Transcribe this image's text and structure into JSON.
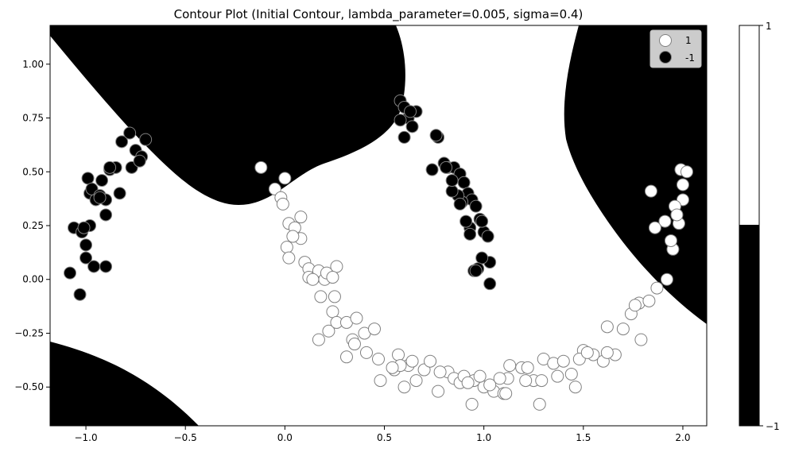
{
  "chart_data": {
    "type": "scatter",
    "title": "Contour Plot (Initial Contour, lambda_parameter=0.005, sigma=0.4)",
    "xlabel": "",
    "ylabel": "",
    "xlim": [
      -1.18,
      2.12
    ],
    "ylim": [
      -0.68,
      1.18
    ],
    "x_ticks": [
      -1.0,
      -0.5,
      0.0,
      0.5,
      1.0,
      1.5,
      2.0
    ],
    "x_tick_labels": [
      "−1.0",
      "−0.5",
      "0.0",
      "0.5",
      "1.0",
      "1.5",
      "2.0"
    ],
    "y_ticks": [
      -0.5,
      -0.25,
      0.0,
      0.25,
      0.5,
      0.75,
      1.0
    ],
    "y_tick_labels": [
      "−0.50",
      "−0.25",
      "0.00",
      "0.25",
      "0.50",
      "0.75",
      "1.00"
    ],
    "grid": false,
    "legend_position": "top-right",
    "colorbar": {
      "ticks": [
        1,
        -1
      ],
      "tick_labels": [
        "1",
        "−1"
      ],
      "min": -1,
      "max": 1,
      "split": 0.0
    },
    "colors": {
      "region_negative": "#000000",
      "region_positive": "#ffffff",
      "marker_edge": "#808080",
      "legend_bg": "#cccccc"
    },
    "series": [
      {
        "name": "1",
        "color": "#ffffff",
        "x": [
          -0.12,
          -0.05,
          0.0,
          -0.02,
          -0.01,
          0.02,
          0.05,
          0.08,
          0.1,
          0.12,
          0.15,
          0.17,
          0.18,
          0.2,
          0.21,
          0.24,
          0.25,
          0.22,
          0.26,
          0.31,
          0.34,
          0.35,
          0.4,
          0.45,
          0.36,
          0.47,
          0.55,
          0.57,
          0.62,
          0.66,
          0.58,
          0.7,
          0.77,
          0.82,
          0.85,
          0.88,
          0.9,
          0.95,
          1.0,
          1.05,
          1.1,
          1.13,
          1.19,
          1.25,
          1.3,
          1.35,
          1.4,
          1.46,
          1.5,
          1.55,
          1.6,
          1.66,
          1.7,
          1.74,
          1.78,
          1.83,
          1.87,
          1.92,
          1.95,
          1.98,
          2.0,
          2.0,
          1.99,
          1.96,
          1.91,
          1.86,
          0.94,
          1.03,
          1.12,
          1.22,
          1.28,
          1.37,
          1.48,
          1.52,
          1.62,
          1.79,
          1.29,
          1.21,
          1.08,
          0.64,
          0.48,
          0.31,
          0.17,
          0.08,
          0.04,
          0.01,
          0.12,
          0.26,
          0.41,
          0.6,
          0.78,
          0.92,
          1.11,
          1.44,
          1.62,
          1.76,
          1.94,
          2.02,
          1.84,
          1.97,
          0.98,
          0.73,
          0.54,
          0.02,
          0.14,
          0.24
        ],
        "y": [
          0.52,
          0.42,
          0.47,
          0.38,
          0.35,
          0.26,
          0.24,
          0.19,
          0.08,
          0.05,
          0.01,
          0.04,
          -0.08,
          0.0,
          0.03,
          -0.15,
          -0.08,
          -0.24,
          -0.2,
          -0.2,
          -0.28,
          -0.3,
          -0.25,
          -0.23,
          -0.18,
          -0.37,
          -0.42,
          -0.35,
          -0.4,
          -0.47,
          -0.4,
          -0.42,
          -0.52,
          -0.43,
          -0.46,
          -0.48,
          -0.45,
          -0.47,
          -0.5,
          -0.52,
          -0.53,
          -0.4,
          -0.41,
          -0.47,
          -0.37,
          -0.39,
          -0.38,
          -0.5,
          -0.33,
          -0.35,
          -0.38,
          -0.35,
          -0.23,
          -0.16,
          -0.11,
          -0.1,
          -0.04,
          0.0,
          0.14,
          0.26,
          0.37,
          0.44,
          0.51,
          0.34,
          0.27,
          0.24,
          -0.58,
          -0.49,
          -0.46,
          -0.41,
          -0.58,
          -0.45,
          -0.37,
          -0.34,
          -0.22,
          -0.28,
          -0.47,
          -0.47,
          -0.46,
          -0.38,
          -0.47,
          -0.36,
          -0.28,
          0.29,
          0.2,
          0.15,
          0.01,
          0.06,
          -0.34,
          -0.5,
          -0.43,
          -0.48,
          -0.53,
          -0.44,
          -0.34,
          -0.12,
          0.18,
          0.5,
          0.41,
          0.3,
          -0.45,
          -0.38,
          -0.41,
          0.1,
          0.0,
          0.01
        ]
      },
      {
        "name": "-1",
        "color": "#000000",
        "x": [
          -1.06,
          -1.02,
          -1.0,
          -0.99,
          -0.98,
          -0.97,
          -0.95,
          -0.93,
          -0.92,
          -0.9,
          -0.88,
          -0.85,
          -0.82,
          -0.78,
          -0.75,
          -0.72,
          -0.7,
          -1.0,
          -0.96,
          -0.9,
          -1.08,
          -1.03,
          -0.98,
          -0.93,
          -0.88,
          -0.83,
          -0.77,
          -0.73,
          -0.9,
          -1.01,
          0.58,
          0.6,
          0.62,
          0.64,
          0.66,
          0.58,
          0.6,
          0.63,
          0.74,
          0.77,
          0.8,
          0.82,
          0.85,
          0.88,
          0.9,
          0.92,
          0.94,
          0.96,
          0.98,
          1.0,
          1.02,
          1.03,
          0.99,
          0.97,
          0.95,
          0.93,
          0.91,
          0.89,
          0.87,
          0.84,
          0.81,
          0.76,
          0.84,
          0.88,
          0.93,
          0.99,
          1.03,
          0.96
        ],
        "y": [
          0.24,
          0.22,
          0.1,
          0.47,
          0.4,
          0.42,
          0.37,
          0.39,
          0.46,
          0.37,
          0.51,
          0.52,
          0.64,
          0.68,
          0.6,
          0.57,
          0.65,
          0.16,
          0.06,
          0.3,
          0.03,
          -0.07,
          0.25,
          0.38,
          0.52,
          0.4,
          0.52,
          0.55,
          0.06,
          0.24,
          0.83,
          0.8,
          0.75,
          0.71,
          0.78,
          0.74,
          0.66,
          0.78,
          0.51,
          0.66,
          0.54,
          0.52,
          0.52,
          0.49,
          0.45,
          0.4,
          0.37,
          0.34,
          0.28,
          0.22,
          0.2,
          0.08,
          0.1,
          0.05,
          0.04,
          0.24,
          0.27,
          0.36,
          0.39,
          0.41,
          0.52,
          0.67,
          0.46,
          0.35,
          0.21,
          0.27,
          -0.02,
          0.04
        ]
      }
    ]
  }
}
